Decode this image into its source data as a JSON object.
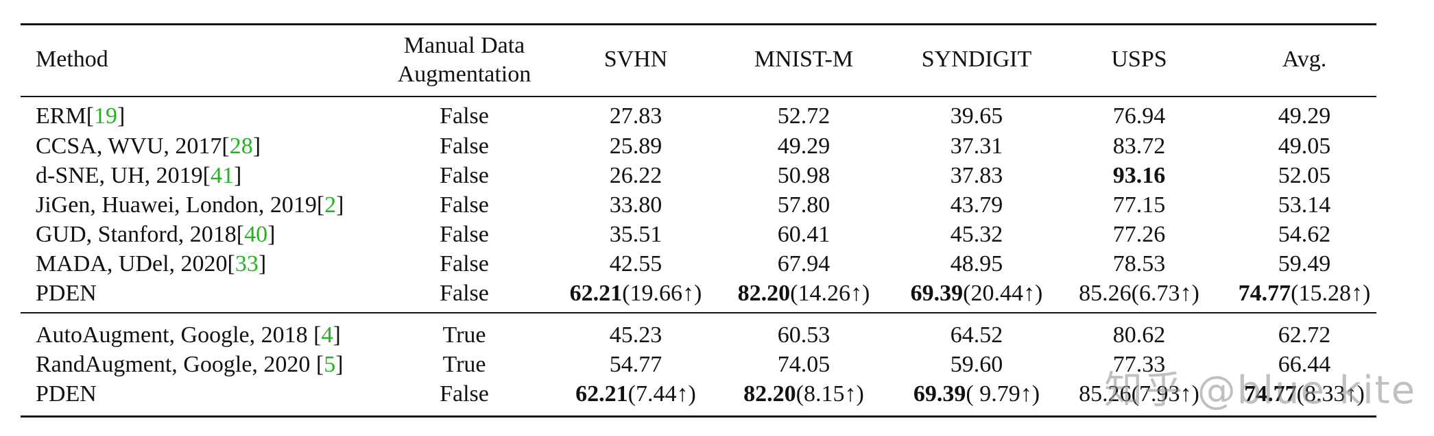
{
  "header": {
    "method": "Method",
    "aug_line1": "Manual Data",
    "aug_line2": "Augmentation",
    "svhn": "SVHN",
    "mnistm": "MNIST-M",
    "syndigit": "SYNDIGIT",
    "usps": "USPS",
    "avg": "Avg."
  },
  "rows": [
    {
      "method": "ERM",
      "cite": "19",
      "space": "",
      "aug": "False",
      "svhn": "27.83",
      "mnistm": "52.72",
      "syndigit": "39.65",
      "usps": "76.94",
      "avg": "49.29"
    },
    {
      "method": "CCSA, WVU, 2017",
      "cite": "28",
      "space": "",
      "aug": "False",
      "svhn": "25.89",
      "mnistm": "49.29",
      "syndigit": "37.31",
      "usps": "83.72",
      "avg": "49.05"
    },
    {
      "method": "d-SNE, UH, 2019",
      "cite": "41",
      "space": "",
      "aug": "False",
      "svhn": "26.22",
      "mnistm": "50.98",
      "syndigit": "37.83",
      "usps": "93.16",
      "avg": "52.05"
    },
    {
      "method": "JiGen, Huawei, London, 2019",
      "cite": "2",
      "space": "",
      "aug": "False",
      "svhn": "33.80",
      "mnistm": "57.80",
      "syndigit": "43.79",
      "usps": "77.15",
      "avg": "53.14"
    },
    {
      "method": "GUD, Stanford, 2018",
      "cite": "40",
      "space": "",
      "aug": "False",
      "svhn": "35.51",
      "mnistm": "60.41",
      "syndigit": "45.32",
      "usps": "77.26",
      "avg": "54.62"
    },
    {
      "method": "MADA, UDel, 2020",
      "cite": "33",
      "space": "",
      "aug": "False",
      "svhn": "42.55",
      "mnistm": "67.94",
      "syndigit": "48.95",
      "usps": "78.53",
      "avg": "59.49"
    },
    {
      "method": "PDEN",
      "cite": "",
      "space": "",
      "aug": "False",
      "svhn_b": "62.21",
      "svhn_r": "(19.66↑)",
      "mnistm_b": "82.20",
      "mnistm_r": "(14.26↑)",
      "syndigit_b": "69.39",
      "syndigit_r": "(20.44↑)",
      "usps": "85.26(6.73↑)",
      "avg_b": "74.77",
      "avg_r": "(15.28↑)"
    },
    {
      "method": "AutoAugment, Google, 2018",
      "cite": "4",
      "space": " ",
      "aug": "True",
      "svhn": "45.23",
      "mnistm": "60.53",
      "syndigit": "64.52",
      "usps": "80.62",
      "avg": "62.72"
    },
    {
      "method": "RandAugment, Google, 2020",
      "cite": "5",
      "space": " ",
      "aug": "True",
      "svhn": "54.77",
      "mnistm": "74.05",
      "syndigit": "59.60",
      "usps": "77.33",
      "avg": "66.44"
    },
    {
      "method": "PDEN",
      "cite": "",
      "space": "",
      "aug": "False",
      "svhn_b": "62.21",
      "svhn_r": "(7.44↑)",
      "mnistm_b": "82.20",
      "mnistm_r": "(8.15↑)",
      "syndigit_b": "69.39",
      "syndigit_r": "( 9.79↑)",
      "usps": "85.26(7.93↑)",
      "avg_b": "74.77",
      "avg_r": "(8.33↑)"
    }
  ],
  "watermark": "知乎 @blue kite",
  "colors": {
    "citation": "#1fb51f",
    "rules": "#111111"
  }
}
